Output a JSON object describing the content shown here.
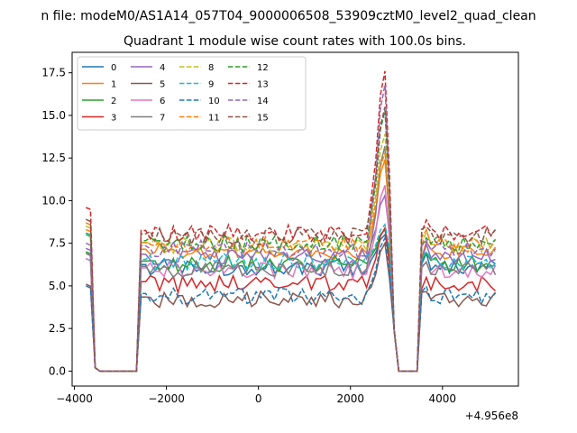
{
  "chart_data": {
    "type": "line",
    "suptitle": "n file: modeM0/AS1A14_057T04_9000006508_53909cztM0_level2_quad_clean",
    "title": "Quadrant 1 module wise count rates with 100.0s bins.",
    "xlabel": "",
    "ylabel": "",
    "x_offset_label": "+4.956e8",
    "xlim": [
      -4050,
      5650
    ],
    "ylim": [
      -0.88,
      18.7
    ],
    "x_ticks": [
      -4000,
      -2000,
      0,
      2000,
      4000
    ],
    "x_tick_labels": [
      "−4000",
      "−2000",
      "0",
      "2000",
      "4000"
    ],
    "y_ticks": [
      0.0,
      2.5,
      5.0,
      7.5,
      10.0,
      12.5,
      15.0,
      17.5
    ],
    "y_tick_labels": [
      "0.0",
      "2.5",
      "5.0",
      "7.5",
      "10.0",
      "12.5",
      "15.0",
      "17.5"
    ],
    "grid": false,
    "legend_location": "upper-left",
    "legend_columns": 4,
    "bin_width_s": 100.0,
    "x_segments": [
      {
        "start": -3750,
        "count": 12
      },
      {
        "start": -2550,
        "count": 60
      },
      {
        "start": 3450,
        "count": 18
      }
    ],
    "series": [
      {
        "name": "0",
        "color": "#1f77b4",
        "dashed": false,
        "level": 6.1,
        "start": 6.6,
        "peak": 8.0
      },
      {
        "name": "1",
        "color": "#ff7f0e",
        "dashed": false,
        "level": 7.0,
        "start": 8.3,
        "peak": 12.4
      },
      {
        "name": "2",
        "color": "#2ca02c",
        "dashed": false,
        "level": 6.3,
        "start": 7.0,
        "peak": 8.3
      },
      {
        "name": "3",
        "color": "#d62728",
        "dashed": false,
        "level": 5.1,
        "start": 6.9,
        "peak": 8.4
      },
      {
        "name": "4",
        "color": "#9467bd",
        "dashed": false,
        "level": 6.7,
        "start": 7.2,
        "peak": 10.3
      },
      {
        "name": "5",
        "color": "#8c564b",
        "dashed": false,
        "level": 4.2,
        "start": 5.1,
        "peak": 7.5
      },
      {
        "name": "6",
        "color": "#e377c2",
        "dashed": false,
        "level": 5.9,
        "start": 6.6,
        "peak": 10.9
      },
      {
        "name": "7",
        "color": "#7f7f7f",
        "dashed": false,
        "level": 6.0,
        "start": 6.9,
        "peak": 13.2
      },
      {
        "name": "8",
        "color": "#bcbd22",
        "dashed": true,
        "level": 7.4,
        "start": 8.5,
        "peak": 13.9
      },
      {
        "name": "9",
        "color": "#17becf",
        "dashed": true,
        "level": 6.4,
        "start": 8.0,
        "peak": 8.6
      },
      {
        "name": "10",
        "color": "#1f77b4",
        "dashed": true,
        "level": 4.4,
        "start": 5.0,
        "peak": 7.8
      },
      {
        "name": "11",
        "color": "#ff7f0e",
        "dashed": true,
        "level": 7.4,
        "start": 8.7,
        "peak": 12.8
      },
      {
        "name": "12",
        "color": "#2ca02c",
        "dashed": true,
        "level": 7.5,
        "start": 8.1,
        "peak": 15.3
      },
      {
        "name": "13",
        "color": "#d62728",
        "dashed": true,
        "level": 8.1,
        "start": 9.6,
        "peak": 17.6
      },
      {
        "name": "14",
        "color": "#9467bd",
        "dashed": true,
        "level": 7.2,
        "start": 7.5,
        "peak": 16.8
      },
      {
        "name": "15",
        "color": "#8c564b",
        "dashed": true,
        "level": 7.9,
        "start": 8.9,
        "peak": 15.5
      }
    ]
  }
}
